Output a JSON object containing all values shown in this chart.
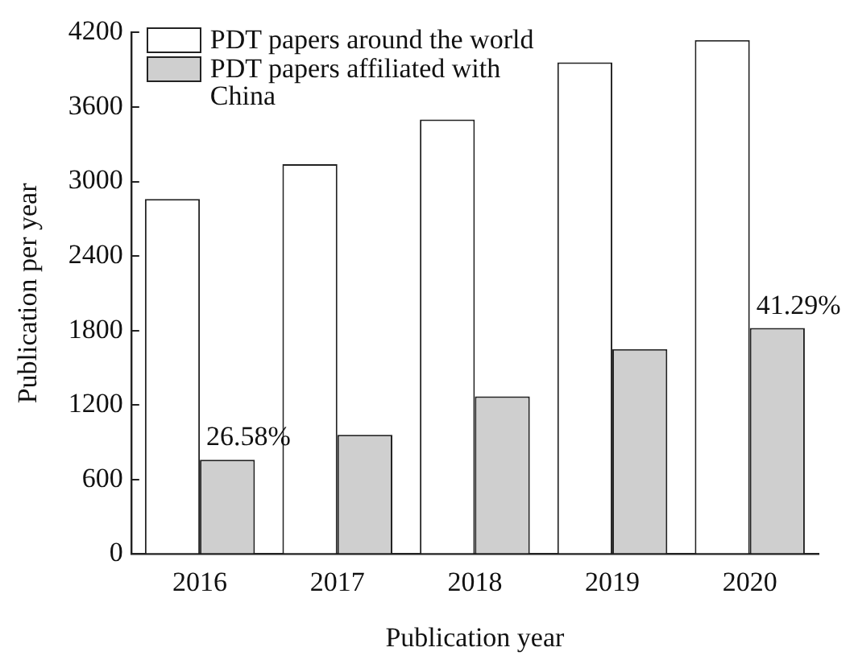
{
  "chart_data": {
    "type": "bar",
    "xlabel": "Publication year",
    "ylabel": "Publication per year",
    "categories": [
      "2016",
      "2017",
      "2018",
      "2019",
      "2020"
    ],
    "series": [
      {
        "name": "PDT papers around the world",
        "color": "#ffffff",
        "values": [
          2860,
          3140,
          3500,
          3960,
          4140
        ]
      },
      {
        "name": "PDT papers affiliated with China",
        "color": "#cfcfcf",
        "values": [
          760,
          960,
          1270,
          1650,
          1820
        ]
      }
    ],
    "ylim": [
      0,
      4200
    ],
    "yticks": [
      0,
      600,
      1200,
      1800,
      2400,
      3000,
      3600,
      4200
    ],
    "grid": false,
    "legend": "top left",
    "annotations": [
      {
        "text": "26.58%",
        "x": "2016",
        "y": 760
      },
      {
        "text": "41.29%",
        "x": "2020",
        "y": 1820
      }
    ]
  }
}
